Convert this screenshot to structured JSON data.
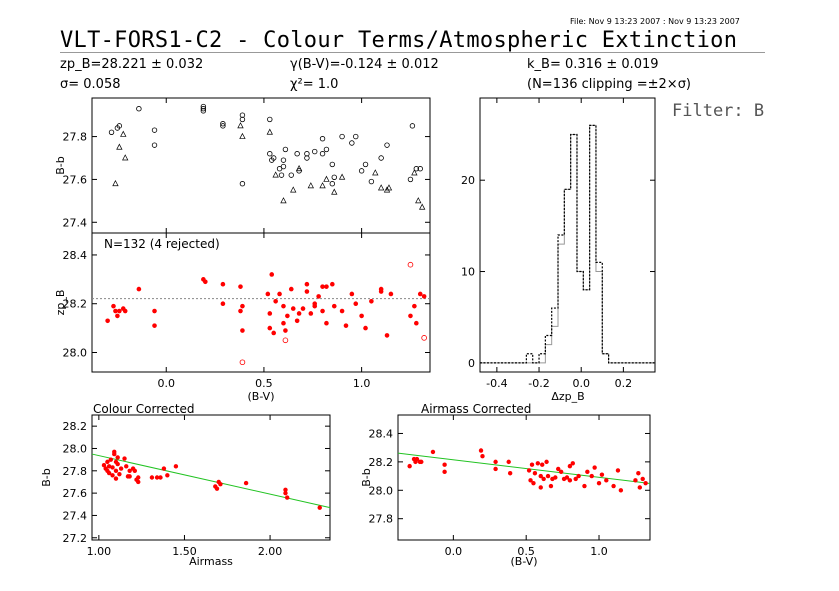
{
  "header": {
    "file_info": "File: Nov  9 13:23 2007 : Nov  9 13:23 2007",
    "title": "VLT-FORS1-C2 - Colour Terms/Atmospheric Extinction",
    "zp": "zp_B=28.221 ± 0.032",
    "sigma": "σ= 0.058",
    "gamma": "γ(B-V)=-0.124 ± 0.012",
    "chi2": "χ²= 1.0",
    "k": "k_B= 0.316 ± 0.019",
    "clipping": "(N=136 clipping =±2×σ)",
    "filter": "Filter: B"
  },
  "colors": {
    "accent": "#ff0000",
    "fit": "#22c322",
    "frame": "#000000",
    "ref_line": "#888888"
  },
  "chart_data": [
    {
      "id": "top-left-upper",
      "type": "scatter",
      "ylabel": "B-b",
      "xlim": [
        -0.38,
        1.35
      ],
      "ylim": [
        27.35,
        27.98
      ],
      "yticks": [
        27.4,
        27.6,
        27.8
      ],
      "series": [
        {
          "marker": "circle",
          "x": [
            -0.28,
            -0.25,
            -0.24,
            -0.14,
            -0.06,
            -0.06,
            0.19,
            0.19,
            0.19,
            0.29,
            0.29,
            0.39,
            0.39,
            0.39,
            0.53,
            0.53,
            0.54,
            0.55,
            0.58,
            0.59,
            0.6,
            0.6,
            0.61,
            0.64,
            0.67,
            0.68,
            0.72,
            0.72,
            0.76,
            0.8,
            0.8,
            0.82,
            0.85,
            0.85,
            0.86,
            0.9,
            0.95,
            0.97,
            1.0,
            1.02,
            1.05,
            1.1,
            1.13,
            1.25,
            1.26,
            1.28,
            1.3
          ],
          "y": [
            27.82,
            27.84,
            27.85,
            27.93,
            27.83,
            27.76,
            27.93,
            27.94,
            27.92,
            27.86,
            27.85,
            27.88,
            27.9,
            27.58,
            27.88,
            27.72,
            27.69,
            27.7,
            27.65,
            27.62,
            27.66,
            27.69,
            27.74,
            27.62,
            27.72,
            27.64,
            27.7,
            27.72,
            27.73,
            27.72,
            27.79,
            27.74,
            27.67,
            27.58,
            27.61,
            27.8,
            27.77,
            27.8,
            27.64,
            27.67,
            27.59,
            27.7,
            27.76,
            27.6,
            27.85,
            27.65,
            27.65
          ]
        },
        {
          "marker": "triangle",
          "x": [
            -0.26,
            -0.24,
            -0.22,
            -0.21,
            0.38,
            0.39,
            0.53,
            0.56,
            0.6,
            0.65,
            0.68,
            0.74,
            0.8,
            0.82,
            0.86,
            0.9,
            1.07,
            1.1,
            1.13,
            1.14,
            1.27,
            1.29,
            1.31
          ],
          "y": [
            27.58,
            27.75,
            27.81,
            27.7,
            27.85,
            27.8,
            27.82,
            27.62,
            27.5,
            27.55,
            27.65,
            27.57,
            27.57,
            27.6,
            27.54,
            27.61,
            27.63,
            27.56,
            27.55,
            27.56,
            27.63,
            27.5,
            27.47
          ]
        }
      ]
    },
    {
      "id": "top-left-lower",
      "type": "scatter",
      "title": "N=132 (4 rejected)",
      "xlabel": "(B-V)",
      "ylabel": "zp_B",
      "xlim": [
        -0.38,
        1.35
      ],
      "ylim": [
        27.92,
        28.49
      ],
      "yticks": [
        28.0,
        28.2,
        28.4
      ],
      "xticks": [
        0.0,
        0.5,
        1.0
      ],
      "reference_y": 28.221,
      "series": [
        {
          "name": "used",
          "x": [
            -0.3,
            -0.27,
            -0.26,
            -0.25,
            -0.24,
            -0.22,
            -0.21,
            -0.14,
            -0.06,
            -0.06,
            0.19,
            0.2,
            0.29,
            0.29,
            0.38,
            0.38,
            0.39,
            0.39,
            0.52,
            0.53,
            0.53,
            0.54,
            0.55,
            0.56,
            0.58,
            0.6,
            0.6,
            0.61,
            0.62,
            0.64,
            0.65,
            0.67,
            0.68,
            0.7,
            0.72,
            0.72,
            0.74,
            0.76,
            0.76,
            0.78,
            0.8,
            0.8,
            0.82,
            0.82,
            0.85,
            0.86,
            0.9,
            0.92,
            0.95,
            0.97,
            1.0,
            1.02,
            1.05,
            1.1,
            1.1,
            1.13,
            1.15,
            1.25,
            1.27,
            1.28,
            1.3,
            1.32
          ],
          "y": [
            28.13,
            28.19,
            28.17,
            28.15,
            28.17,
            28.18,
            28.17,
            28.26,
            28.17,
            28.11,
            28.3,
            28.29,
            28.2,
            28.28,
            28.27,
            28.17,
            28.19,
            28.09,
            28.24,
            28.1,
            28.16,
            28.32,
            28.08,
            28.21,
            28.24,
            28.19,
            28.12,
            28.09,
            28.15,
            28.26,
            28.18,
            28.13,
            28.16,
            28.18,
            28.25,
            28.28,
            28.16,
            28.19,
            28.2,
            28.23,
            28.27,
            28.17,
            28.12,
            28.27,
            28.28,
            28.19,
            28.17,
            28.11,
            28.24,
            28.2,
            28.15,
            28.1,
            28.21,
            28.26,
            28.25,
            28.07,
            28.24,
            28.15,
            28.19,
            28.12,
            28.24,
            28.23
          ]
        },
        {
          "name": "rejected",
          "x": [
            0.39,
            0.61,
            1.25,
            1.32
          ],
          "y": [
            27.96,
            28.05,
            28.36,
            28.06
          ]
        }
      ]
    },
    {
      "id": "histogram",
      "type": "histogram",
      "xlabel": "Δzp_B",
      "xlim": [
        -0.48,
        0.35
      ],
      "ylim": [
        -1,
        29
      ],
      "xticks": [
        -0.4,
        -0.2,
        0.0,
        0.2
      ],
      "yticks": [
        0,
        10,
        20
      ],
      "bin_edges": [
        -0.26,
        -0.23,
        -0.2,
        -0.17,
        -0.14,
        -0.11,
        -0.08,
        -0.05,
        -0.02,
        0.01,
        0.04,
        0.07,
        0.1,
        0.13
      ],
      "counts_dotted": [
        1,
        0,
        1,
        3,
        6,
        14,
        19,
        25,
        10,
        8,
        26,
        11,
        1,
        0
      ],
      "counts_solid": [
        0,
        0,
        0,
        2,
        4,
        13,
        19,
        25,
        10,
        8,
        26,
        10,
        1,
        0
      ]
    },
    {
      "id": "colour-corrected",
      "type": "scatter",
      "title": "Colour Corrected",
      "xlabel": "Airmass",
      "ylabel": "B-b",
      "xlim": [
        0.96,
        2.35
      ],
      "ylim": [
        27.18,
        28.3
      ],
      "xticks": [
        1.0,
        1.5,
        2.0
      ],
      "yticks": [
        27.2,
        27.4,
        27.6,
        27.8,
        28.0,
        28.2
      ],
      "fit_line": {
        "x": [
          0.96,
          2.35
        ],
        "y": [
          27.95,
          27.47
        ]
      },
      "series": [
        {
          "x": [
            1.03,
            1.04,
            1.05,
            1.05,
            1.06,
            1.06,
            1.07,
            1.08,
            1.08,
            1.09,
            1.09,
            1.1,
            1.1,
            1.1,
            1.11,
            1.11,
            1.12,
            1.13,
            1.15,
            1.16,
            1.17,
            1.18,
            1.18,
            1.2,
            1.21,
            1.22,
            1.23,
            1.23,
            1.31,
            1.34,
            1.36,
            1.38,
            1.4,
            1.45,
            1.68,
            1.69,
            1.7,
            1.71,
            1.86,
            2.09,
            2.09,
            2.1,
            2.29
          ],
          "y": [
            27.85,
            27.82,
            27.88,
            27.8,
            27.84,
            27.78,
            27.9,
            27.76,
            27.83,
            27.97,
            27.95,
            27.88,
            27.8,
            27.73,
            27.92,
            27.86,
            27.77,
            27.82,
            27.91,
            27.84,
            27.75,
            27.8,
            27.75,
            27.82,
            27.8,
            27.72,
            27.7,
            27.74,
            27.74,
            27.74,
            27.74,
            27.82,
            27.76,
            27.84,
            27.66,
            27.64,
            27.7,
            27.68,
            27.69,
            27.6,
            27.63,
            27.56,
            27.47
          ]
        }
      ]
    },
    {
      "id": "airmass-corrected",
      "type": "scatter",
      "title": "Airmass Corrected",
      "xlabel": "(B-V)",
      "ylabel": "B-b",
      "xlim": [
        -0.38,
        1.35
      ],
      "ylim": [
        27.65,
        28.53
      ],
      "xticks": [
        0.0,
        0.5,
        1.0
      ],
      "yticks": [
        27.8,
        28.0,
        28.2,
        28.4
      ],
      "fit_line": {
        "x": [
          -0.38,
          1.35
        ],
        "y": [
          28.262,
          28.048
        ]
      },
      "series": [
        {
          "x": [
            -0.3,
            -0.27,
            -0.26,
            -0.25,
            -0.23,
            -0.22,
            -0.14,
            -0.06,
            -0.06,
            0.19,
            0.2,
            0.29,
            0.29,
            0.38,
            0.39,
            0.52,
            0.53,
            0.54,
            0.55,
            0.56,
            0.58,
            0.6,
            0.6,
            0.61,
            0.62,
            0.64,
            0.65,
            0.67,
            0.68,
            0.7,
            0.72,
            0.74,
            0.76,
            0.78,
            0.8,
            0.8,
            0.82,
            0.84,
            0.86,
            0.9,
            0.92,
            0.95,
            0.97,
            1.0,
            1.02,
            1.05,
            1.1,
            1.13,
            1.15,
            1.25,
            1.27,
            1.28,
            1.3,
            1.32
          ],
          "y": [
            28.17,
            28.22,
            28.2,
            28.22,
            28.2,
            28.2,
            28.27,
            28.18,
            28.13,
            28.28,
            28.24,
            28.2,
            28.15,
            28.2,
            28.12,
            28.14,
            28.07,
            28.18,
            28.05,
            28.12,
            28.19,
            28.1,
            28.02,
            28.18,
            28.08,
            28.2,
            28.1,
            28.03,
            28.08,
            28.09,
            28.15,
            28.13,
            28.08,
            28.09,
            28.17,
            28.07,
            28.19,
            28.08,
            28.1,
            28.03,
            28.13,
            28.1,
            28.16,
            28.05,
            28.11,
            28.07,
            28.03,
            28.14,
            28.0,
            28.07,
            28.12,
            28.02,
            28.08,
            28.05
          ]
        }
      ]
    }
  ]
}
